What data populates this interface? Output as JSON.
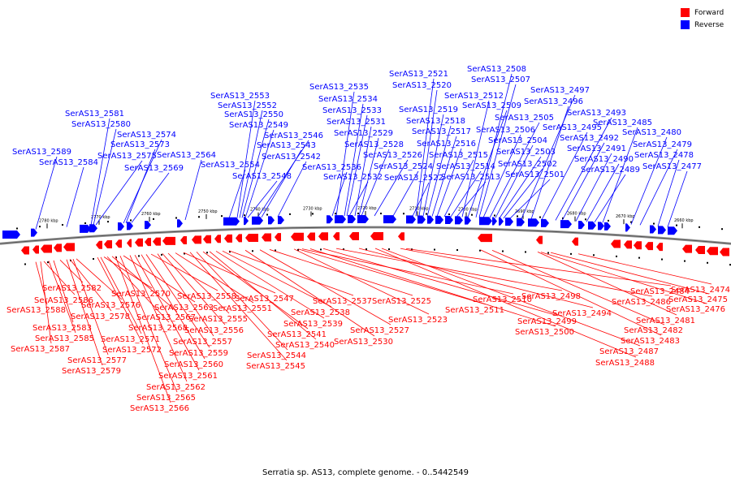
{
  "legend": {
    "forward_label": "Forward",
    "reverse_label": "Reverse",
    "forward_color": "#ff0000",
    "reverse_color": "#0000ff"
  },
  "caption": "Serratia sp. AS13, complete genome. - 0..5442549",
  "scale": {
    "unit": "kbp",
    "ticks_kbp": [
      2780,
      2770,
      2760,
      2750,
      2740,
      2730,
      2720,
      2710,
      2700,
      2690,
      2680,
      2670,
      2660
    ]
  },
  "reverse_genes": [
    "SerAS13_2589",
    "SerAS13_2584",
    "SerAS13_2581",
    "SerAS13_2580",
    "SerAS13_2575",
    "SerAS13_2574",
    "SerAS13_2573",
    "SerAS13_2569",
    "SerAS13_2564",
    "SerAS13_2554",
    "SerAS13_2553",
    "SerAS13_2552",
    "SerAS13_2550",
    "SerAS13_2549",
    "SerAS13_2548",
    "SerAS13_2546",
    "SerAS13_2543",
    "SerAS13_2542",
    "SerAS13_2536",
    "SerAS13_2535",
    "SerAS13_2534",
    "SerAS13_2533",
    "SerAS13_2532",
    "SerAS13_2531",
    "SerAS13_2529",
    "SerAS13_2528",
    "SerAS13_2526",
    "SerAS13_2524",
    "SerAS13_2522",
    "SerAS13_2521",
    "SerAS13_2520",
    "SerAS13_2519",
    "SerAS13_2518",
    "SerAS13_2517",
    "SerAS13_2516",
    "SerAS13_2515",
    "SerAS13_2514",
    "SerAS13_2513",
    "SerAS13_2512",
    "SerAS13_2509",
    "SerAS13_2508",
    "SerAS13_2507",
    "SerAS13_2506",
    "SerAS13_2505",
    "SerAS13_2504",
    "SerAS13_2503",
    "SerAS13_2502",
    "SerAS13_2501",
    "SerAS13_2497",
    "SerAS13_2496",
    "SerAS13_2495",
    "SerAS13_2493",
    "SerAS13_2492",
    "SerAS13_2491",
    "SerAS13_2490",
    "SerAS13_2489",
    "SerAS13_2485",
    "SerAS13_2480",
    "SerAS13_2479",
    "SerAS13_2478",
    "SerAS13_2477"
  ],
  "forward_genes": [
    "SerAS13_2588",
    "SerAS13_2587",
    "SerAS13_2586",
    "SerAS13_2585",
    "SerAS13_2583",
    "SerAS13_2582",
    "SerAS13_2579",
    "SerAS13_2578",
    "SerAS13_2577",
    "SerAS13_2576",
    "SerAS13_2572",
    "SerAS13_2571",
    "SerAS13_2570",
    "SerAS13_2568",
    "SerAS13_2567",
    "SerAS13_2566",
    "SerAS13_2565",
    "SerAS13_2563",
    "SerAS13_2562",
    "SerAS13_2561",
    "SerAS13_2560",
    "SerAS13_2559",
    "SerAS13_2558",
    "SerAS13_2557",
    "SerAS13_2556",
    "SerAS13_2555",
    "SerAS13_2551",
    "SerAS13_2547",
    "SerAS13_2545",
    "SerAS13_2544",
    "SerAS13_2541",
    "SerAS13_2540",
    "SerAS13_2539",
    "SerAS13_2538",
    "SerAS13_2537",
    "SerAS13_2530",
    "SerAS13_2527",
    "SerAS13_2525",
    "SerAS13_2523",
    "SerAS13_2511",
    "SerAS13_2510",
    "SerAS13_2500",
    "SerAS13_2499",
    "SerAS13_2498",
    "SerAS13_2494",
    "SerAS13_2488",
    "SerAS13_2487",
    "SerAS13_2486",
    "SerAS13_2484",
    "SerAS13_2483",
    "SerAS13_2482",
    "SerAS13_2481",
    "SerAS13_2476",
    "SerAS13_2475",
    "SerAS13_2474"
  ]
}
